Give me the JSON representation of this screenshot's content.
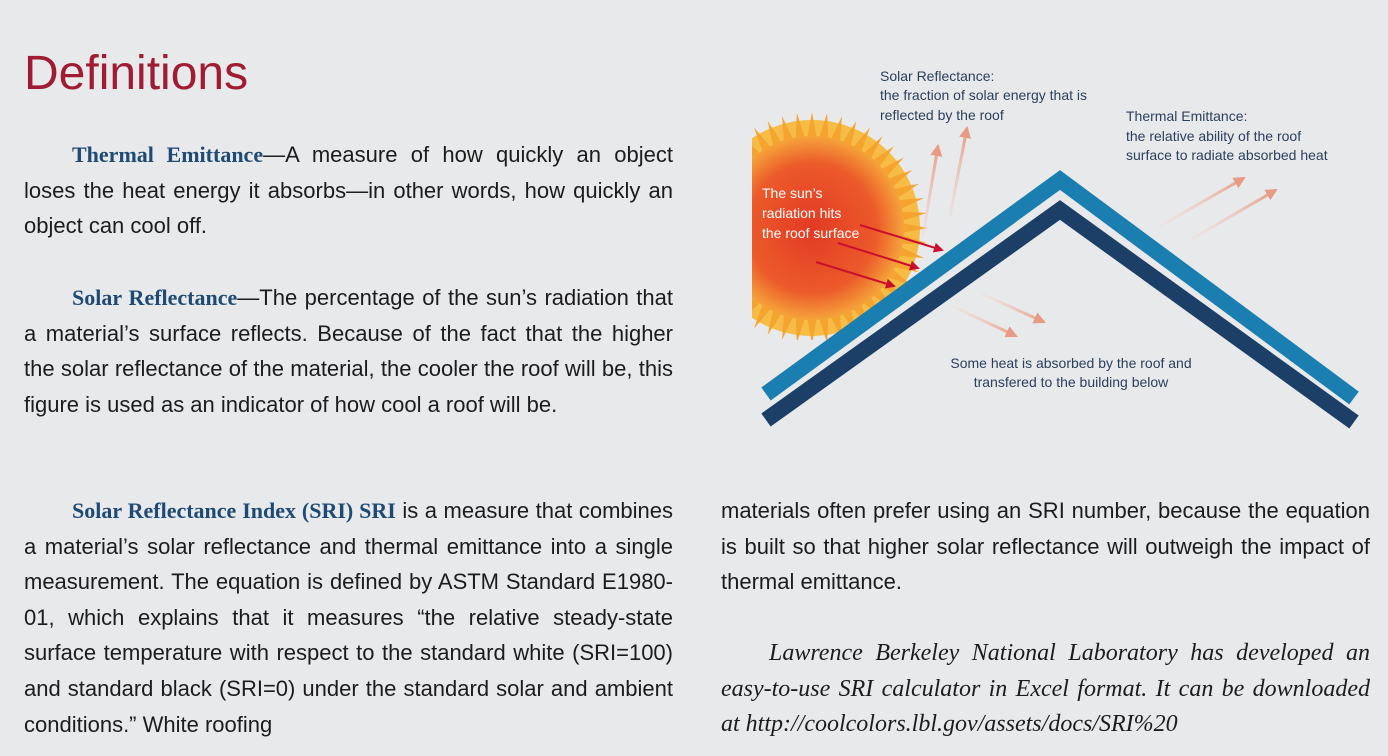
{
  "page": {
    "title": "Definitions"
  },
  "definitions": {
    "thermal": {
      "term": "Thermal Emittance",
      "body": "—A measure of how quickly an object loses the heat energy it absorbs—in other words, how quickly an object can cool off."
    },
    "solar": {
      "term": "Solar Reflectance",
      "body": "—The percentage of the sun’s radiation that a material’s surface reflects. Because of the fact that the higher the solar reflectance of the material, the cooler the roof will be, this figure is used as an indicator of how cool a roof will be."
    },
    "sri": {
      "term": "Solar Reflectance Index (SRI) SRI",
      "body": " is a measure that combines a material’s solar reflectance and thermal emittance into a single measurement. The equation is defined by ASTM Standard E1980-01, which explains that it measures “the relative steady-state surface temperature with respect to the standard white (SRI=100) and standard black (SRI=0) under the standard solar and ambient conditions.” White roofing"
    }
  },
  "right_column": {
    "continuation": "materials often prefer using an SRI number, because the equation is built so that higher solar reflectance will outweigh the impact of thermal emittance.",
    "lbnl": "Lawrence Berkeley National Laboratory has developed an easy-to-use SRI calculator in Excel format. It can be downloaded at http://coolcolors.lbl.gov/assets/docs/SRI%20"
  },
  "diagram": {
    "solar_reflectance": {
      "title": "Solar Reflectance:",
      "line1": "the fraction of solar energy that is",
      "line2": "reflected by the roof"
    },
    "thermal_emittance": {
      "title": "Thermal Emittance:",
      "line1": "the relative ability of the roof",
      "line2": "surface to radiate absorbed heat"
    },
    "sun": {
      "line1": "The sun’s",
      "line2": "radiation hits",
      "line3": "the roof surface"
    },
    "absorbed": {
      "line1": "Some heat is absorbed by the roof and",
      "line2": "transfered to the building below"
    },
    "colors": {
      "roof_top": "#1a7fb0",
      "roof_bottom": "#1b3f66",
      "sun": "#e63a27",
      "ray": "#c8102e",
      "reflect": "#eaa690"
    }
  }
}
